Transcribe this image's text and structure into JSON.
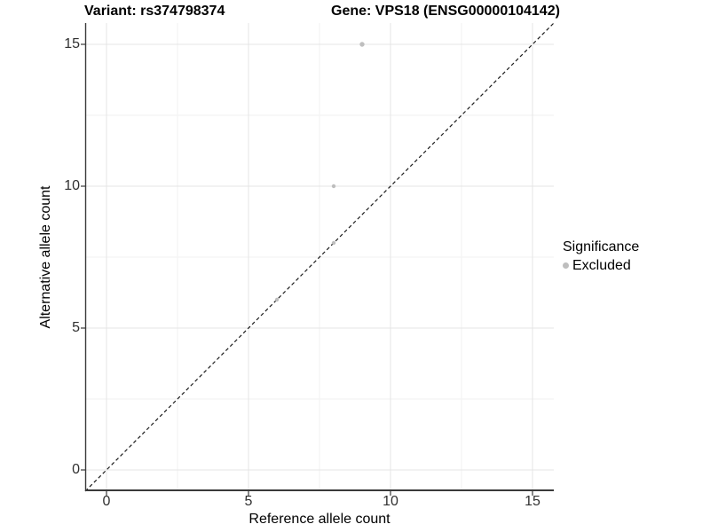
{
  "title": {
    "variant": "Variant: rs374798374",
    "gene": "Gene: VPS18 (ENSG00000104142)"
  },
  "axes": {
    "x_label": "Reference allele count",
    "y_label": "Alternative allele count"
  },
  "legend": {
    "title": "Significance",
    "entries": [
      {
        "label": "Excluded",
        "color": "#bebebe"
      }
    ]
  },
  "colors": {
    "background": "#ffffff",
    "grid_major": "#e4e4e4",
    "grid_minor": "#f2f2f2",
    "axis_line": "#3a3a3a",
    "dashed_line": "#1a1a1a",
    "point": "#bebebe",
    "tick_text": "#303030",
    "title_text": "#000000"
  },
  "chart_data": {
    "type": "scatter",
    "title": "Variant: rs374798374    Gene: VPS18 (ENSG00000104142)",
    "xlabel": "Reference allele count",
    "ylabel": "Alternative allele count",
    "xlim": [
      -0.75,
      15.75
    ],
    "ylim": [
      -0.75,
      15.75
    ],
    "x_ticks": [
      0,
      5,
      10,
      15
    ],
    "y_ticks": [
      0,
      5,
      10,
      15
    ],
    "x_minor_ticks": [
      2.5,
      7.5,
      12.5
    ],
    "y_minor_ticks": [
      2.5,
      7.5,
      12.5
    ],
    "grid": true,
    "legend_position": "right",
    "identity_line": {
      "style": "dashed",
      "from": [
        -0.75,
        -0.75
      ],
      "to": [
        15.75,
        15.75
      ]
    },
    "series": [
      {
        "name": "Excluded",
        "color": "#bebebe",
        "points": [
          {
            "x": 9,
            "y": 15,
            "r": 2.7
          },
          {
            "x": 8,
            "y": 10,
            "r": 2.2
          },
          {
            "x": 8,
            "y": 8,
            "r": 2.2
          },
          {
            "x": 6,
            "y": 6,
            "r": 2.2
          }
        ]
      }
    ]
  }
}
